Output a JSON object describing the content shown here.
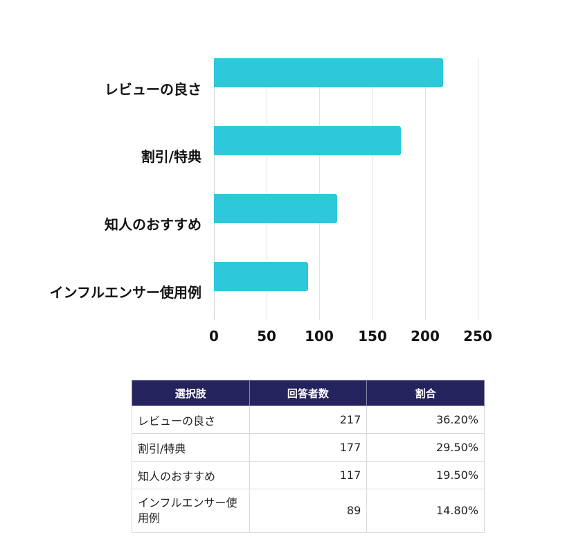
{
  "chart_data": {
    "type": "bar",
    "orientation": "horizontal",
    "title": "",
    "xlabel": "",
    "ylabel": "",
    "categories": [
      "レビューの良さ",
      "割引/特典",
      "知人のおすすめ",
      "インフルエンサー使用例"
    ],
    "values": [
      217,
      177,
      117,
      89
    ],
    "xlim": [
      0,
      250
    ],
    "x_ticks": [
      "0",
      "50",
      "100",
      "150",
      "200",
      "250"
    ],
    "grid": true,
    "legend": null,
    "bar_color": "#2ec8db"
  },
  "table": {
    "header_color": "#25235e",
    "headers": [
      "選択肢",
      "回答者数",
      "割合"
    ],
    "rows": [
      {
        "choice": "レビューの良さ",
        "count": "217",
        "ratio": "36.20%"
      },
      {
        "choice": "割引/特典",
        "count": "177",
        "ratio": "29.50%"
      },
      {
        "choice": "知人のおすすめ",
        "count": "117",
        "ratio": "19.50%"
      },
      {
        "choice": "インフルエンサー使用例",
        "count": "89",
        "ratio": "14.80%"
      }
    ]
  }
}
